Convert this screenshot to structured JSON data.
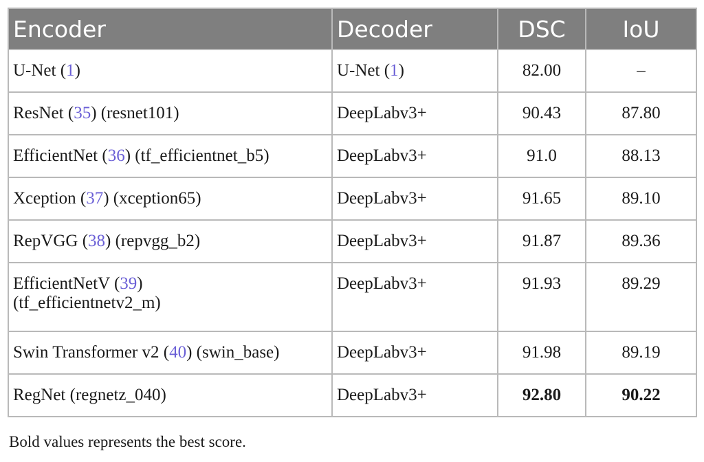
{
  "table": {
    "headers": [
      "Encoder",
      "Decoder",
      "DSC",
      "IoU"
    ],
    "rows": [
      {
        "encoder_name": "U-Net",
        "encoder_ref": "1",
        "encoder_variant": "",
        "decoder_name": "U-Net",
        "decoder_ref": "1",
        "dsc": "82.00",
        "iou": "–"
      },
      {
        "encoder_name": "ResNet",
        "encoder_ref": "35",
        "encoder_variant": "(resnet101)",
        "decoder_name": "DeepLabv3+",
        "decoder_ref": "",
        "dsc": "90.43",
        "iou": "87.80"
      },
      {
        "encoder_name": "EfficientNet",
        "encoder_ref": "36",
        "encoder_variant": "(tf_efficientnet_b5)",
        "decoder_name": "DeepLabv3+",
        "decoder_ref": "",
        "dsc": "91.0",
        "iou": "88.13"
      },
      {
        "encoder_name": "Xception",
        "encoder_ref": "37",
        "encoder_variant": "(xception65)",
        "decoder_name": "DeepLabv3+",
        "decoder_ref": "",
        "dsc": "91.65",
        "iou": "89.10"
      },
      {
        "encoder_name": "RepVGG",
        "encoder_ref": "38",
        "encoder_variant": "(repvgg_b2)",
        "decoder_name": "DeepLabv3+",
        "decoder_ref": "",
        "dsc": "91.87",
        "iou": "89.36"
      },
      {
        "encoder_name": "EfficientNetV",
        "encoder_ref": "39",
        "encoder_variant": "(tf_efficientnetv2_m)",
        "decoder_name": "DeepLabv3+",
        "decoder_ref": "",
        "dsc": "91.93",
        "iou": "89.29"
      },
      {
        "encoder_name": "Swin Transformer v2",
        "encoder_ref": "40",
        "encoder_variant": "(swin_base)",
        "decoder_name": "DeepLabv3+",
        "decoder_ref": "",
        "dsc": "91.98",
        "iou": "89.19"
      },
      {
        "encoder_name": "RegNet",
        "encoder_ref": "",
        "encoder_variant": "(regnetz_040)",
        "decoder_name": "DeepLabv3+",
        "decoder_ref": "",
        "dsc": "92.80",
        "iou": "90.22"
      }
    ]
  },
  "footnote": "Bold values represents the best score.",
  "colors": {
    "header_bg": "#7f7f7f",
    "border": "#b9b9b9",
    "reference_link": "#6a5fd6"
  }
}
